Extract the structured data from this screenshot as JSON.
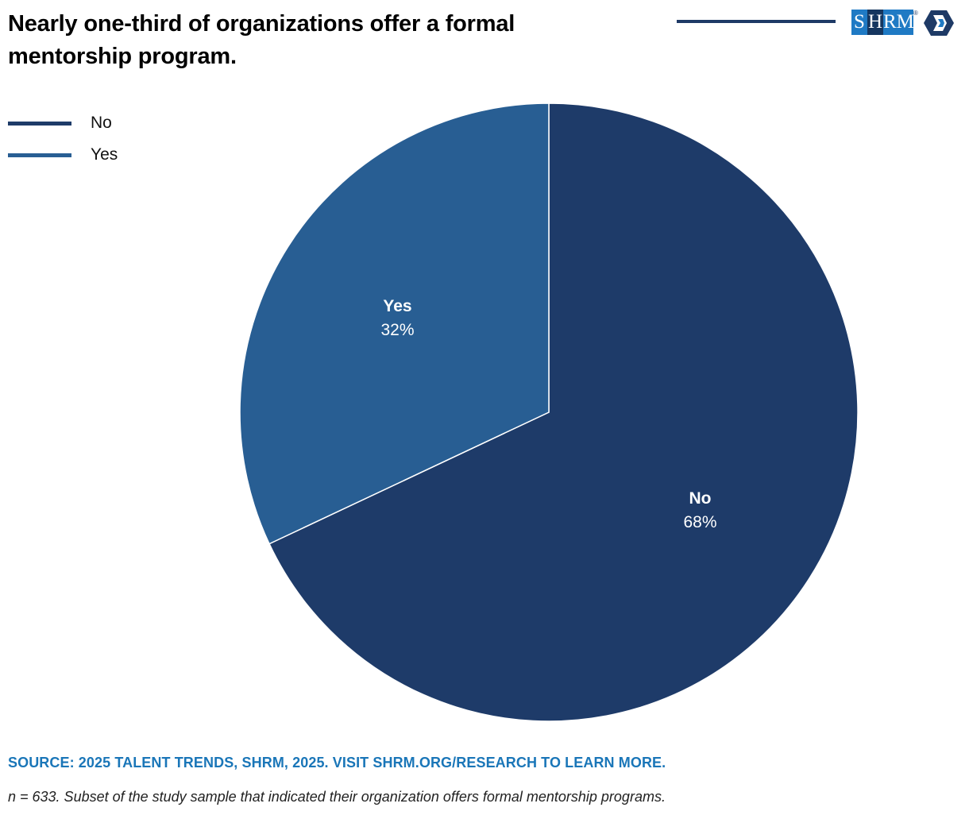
{
  "header": {
    "title": "Nearly one-third of organizations offer a formal mentorship program.",
    "logo": {
      "letters": [
        "S",
        "H",
        "RM"
      ],
      "registered": "®",
      "icon": "shrm-hexagon-icon"
    }
  },
  "colors": {
    "no": "#1e3b69",
    "yes": "#285e93",
    "rule": "#1e3a66",
    "source": "#1a76b8"
  },
  "chart_data": {
    "type": "pie",
    "title": "Nearly one-third of organizations offer a formal mentorship program.",
    "legend_position": "top-left",
    "categories": [
      "No",
      "Yes"
    ],
    "values": [
      68,
      32
    ],
    "labels": [
      "68%",
      "32%"
    ],
    "colors": [
      "#1e3b69",
      "#285e93"
    ],
    "legend": [
      "No",
      "Yes"
    ]
  },
  "footer": {
    "source": "SOURCE: 2025 TALENT TRENDS, SHRM, 2025. VISIT SHRM.ORG/RESEARCH TO LEARN MORE.",
    "note": "n = 633. Subset of the study sample that indicated their organization offers formal mentorship programs."
  }
}
